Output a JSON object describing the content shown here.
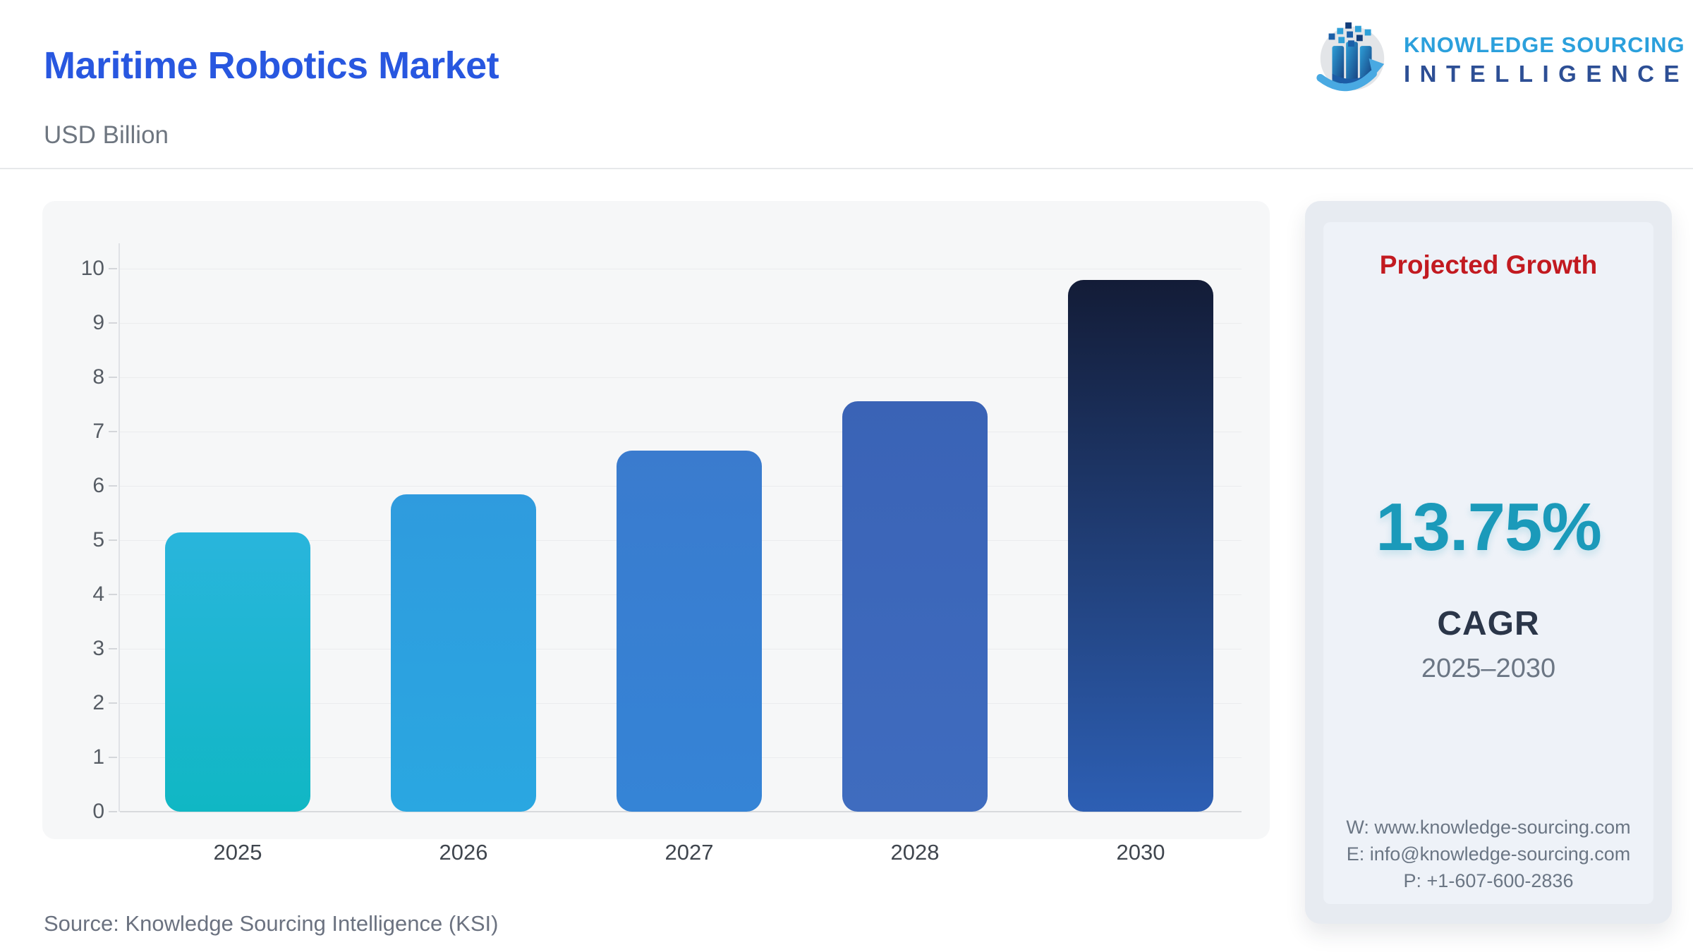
{
  "header": {
    "title": "Maritime Robotics Market",
    "title_color": "#2857e0",
    "subtitle": "USD Billion"
  },
  "logo": {
    "line1": "KNOWLEDGE SOURCING",
    "line2": "INTELLIGENCE",
    "line1_color": "#2ba0dc",
    "line2_color": "#2d4f95"
  },
  "chart_data": {
    "type": "bar",
    "title": "Maritime Robotics Market",
    "ylabel": "USD Billion",
    "categories": [
      "2025",
      "2026",
      "2027",
      "2028",
      "2030"
    ],
    "values": [
      5.14,
      5.84,
      6.65,
      7.56,
      9.79
    ],
    "ylim": [
      0,
      10
    ],
    "yticks": [
      0,
      1,
      2,
      3,
      4,
      5,
      6,
      7,
      8,
      9,
      10
    ],
    "grid": true,
    "legend": "none",
    "bar_colors": [
      [
        "#29b5dc",
        "#10b7c4"
      ],
      [
        "#2f9bde",
        "#2aa7e1"
      ],
      [
        "#3a7bce",
        "#3584d6"
      ],
      [
        "#3a63b6",
        "#3f6cbf"
      ],
      [
        "#131c37",
        "#2d5fb4"
      ]
    ]
  },
  "side_panel": {
    "heading": "Projected Growth",
    "heading_color": "#c21a20",
    "value": "13.75%",
    "value_color": "#1b9aba",
    "metric": "CAGR",
    "period": "2025–2030",
    "contact": {
      "website": "W: www.knowledge-sourcing.com",
      "email": "E: info@knowledge-sourcing.com",
      "phone": "P: +1-607-600-2836"
    }
  },
  "footer": {
    "source": "Source: Knowledge Sourcing Intelligence (KSI)"
  }
}
